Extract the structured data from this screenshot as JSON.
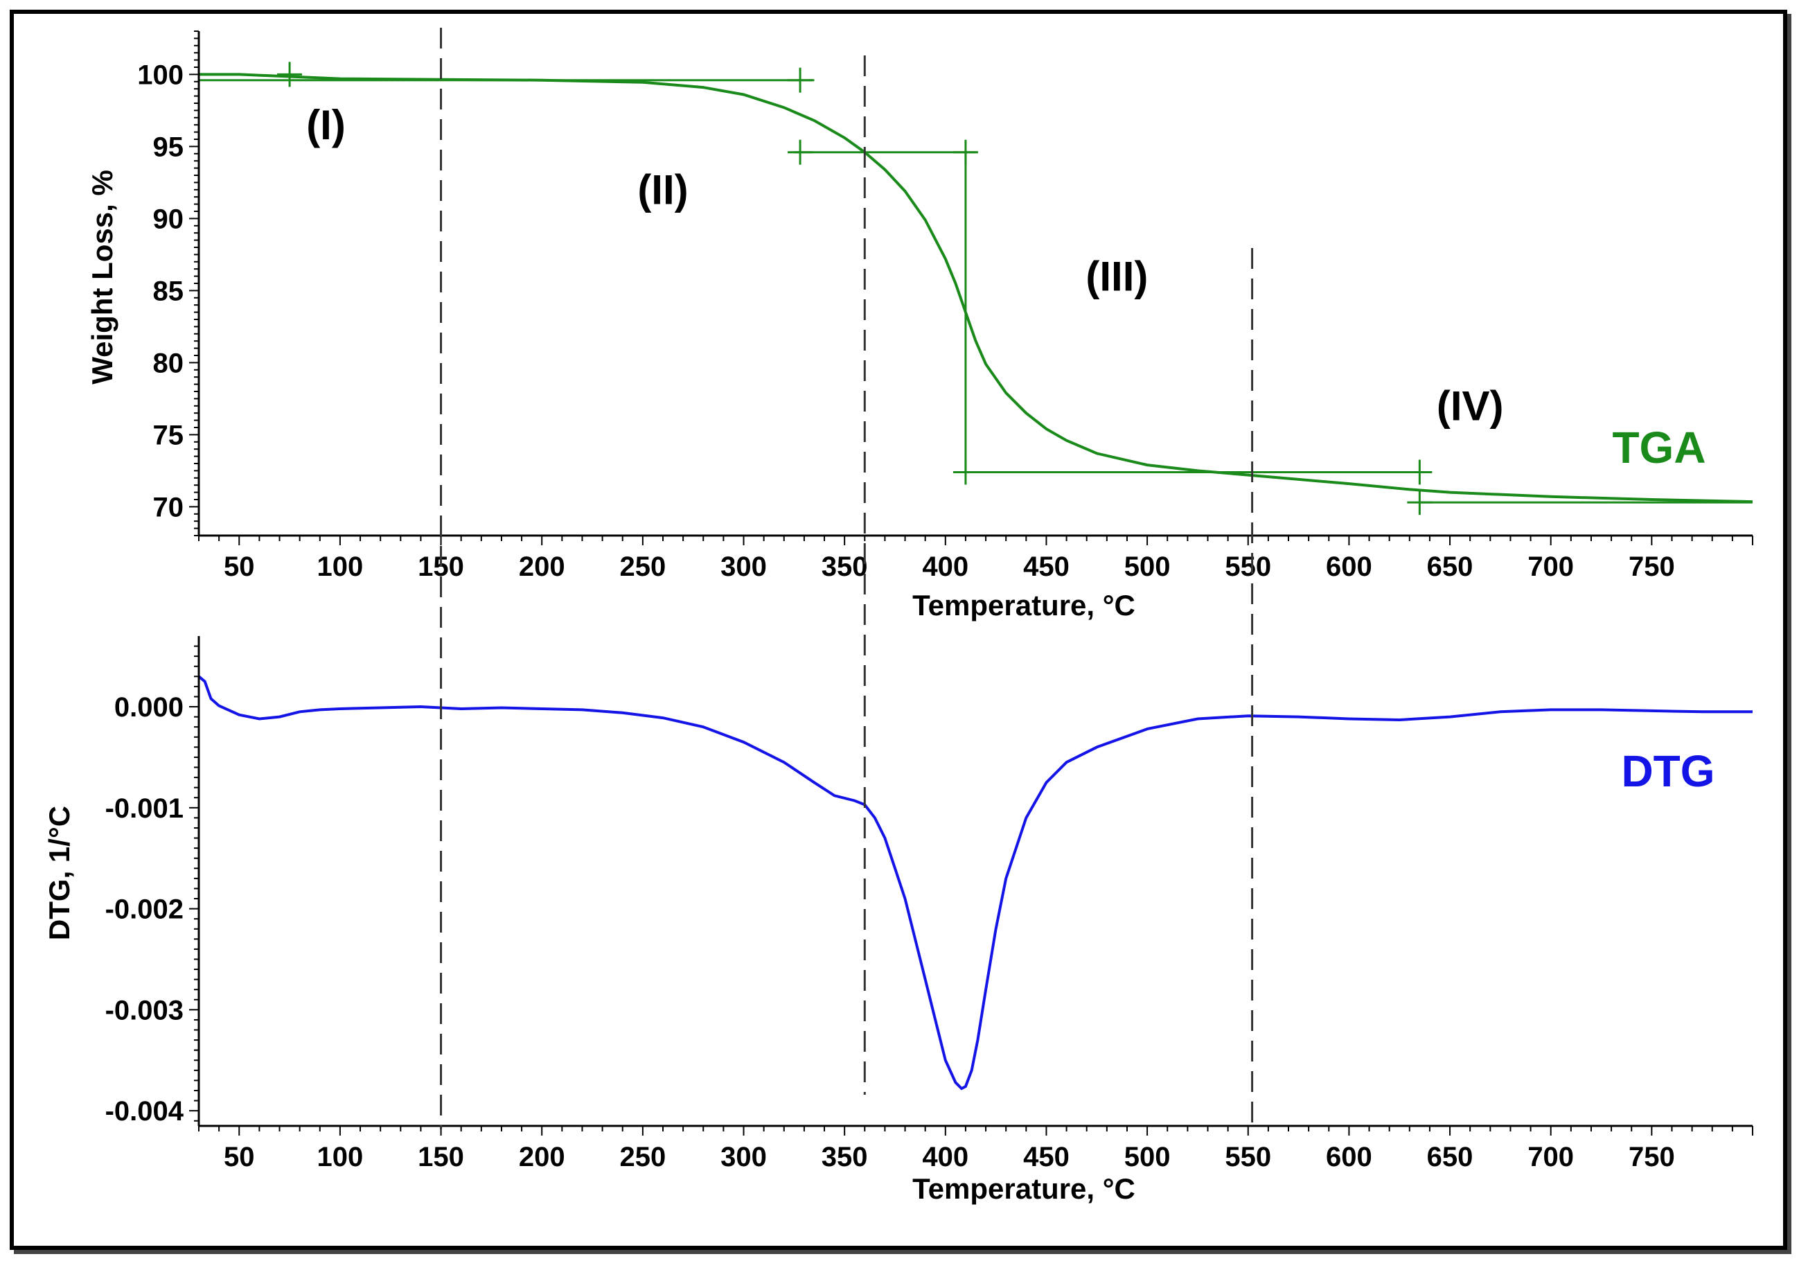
{
  "chart_data": [
    {
      "type": "line",
      "id": "tga",
      "series_name": "TGA",
      "color": "#1a8a1a",
      "xlabel": "Temperature, °C",
      "ylabel": "Weight Loss, %",
      "xlim": [
        30,
        800
      ],
      "ylim": [
        68,
        103
      ],
      "xticks": [
        50,
        100,
        150,
        200,
        250,
        300,
        350,
        400,
        450,
        500,
        550,
        600,
        650,
        700,
        750
      ],
      "yticks": [
        70,
        75,
        80,
        85,
        90,
        95,
        100
      ],
      "x": [
        30,
        50,
        75,
        100,
        150,
        200,
        250,
        280,
        300,
        320,
        335,
        350,
        360,
        370,
        380,
        390,
        400,
        405,
        410,
        415,
        420,
        430,
        440,
        450,
        460,
        475,
        500,
        525,
        550,
        575,
        600,
        630,
        650,
        700,
        750,
        800
      ],
      "y": [
        100.0,
        100.0,
        99.85,
        99.7,
        99.65,
        99.6,
        99.45,
        99.1,
        98.6,
        97.7,
        96.8,
        95.6,
        94.6,
        93.4,
        91.9,
        89.9,
        87.2,
        85.5,
        83.5,
        81.5,
        79.9,
        77.9,
        76.5,
        75.4,
        74.6,
        73.7,
        72.9,
        72.5,
        72.2,
        71.9,
        71.6,
        71.2,
        71.0,
        70.7,
        70.5,
        70.35
      ],
      "tangent_lines": [
        {
          "x": [
            30,
            335
          ],
          "y": [
            99.6,
            99.6
          ]
        },
        {
          "x": [
            325,
            415
          ],
          "y": [
            94.6,
            94.6
          ]
        },
        {
          "x": [
            410,
            410
          ],
          "y": [
            72.4,
            94.6
          ]
        },
        {
          "x": [
            410,
            640
          ],
          "y": [
            72.4,
            72.4
          ]
        },
        {
          "x": [
            635,
            800
          ],
          "y": [
            70.3,
            70.3
          ]
        }
      ],
      "markers": [
        {
          "x": 75,
          "y": 100.0
        },
        {
          "x": 328,
          "y": 99.6
        },
        {
          "x": 328,
          "y": 94.6
        },
        {
          "x": 410,
          "y": 94.6
        },
        {
          "x": 410,
          "y": 72.4
        },
        {
          "x": 635,
          "y": 72.4
        },
        {
          "x": 635,
          "y": 70.3
        }
      ],
      "region_labels": [
        {
          "text": "(I)",
          "x": 93,
          "y": 95.5
        },
        {
          "text": "(II)",
          "x": 260,
          "y": 91
        },
        {
          "text": "(III)",
          "x": 485,
          "y": 85
        },
        {
          "text": "(IV)",
          "x": 660,
          "y": 76
        }
      ]
    },
    {
      "type": "line",
      "id": "dtg",
      "series_name": "DTG",
      "color": "#1414e6",
      "xlabel": "Temperature, °C",
      "ylabel": "DTG, 1/°C",
      "xlim": [
        30,
        800
      ],
      "ylim": [
        -0.00415,
        0.0007
      ],
      "xticks": [
        50,
        100,
        150,
        200,
        250,
        300,
        350,
        400,
        450,
        500,
        550,
        600,
        650,
        700,
        750
      ],
      "yticks": [
        0.0,
        -0.001,
        -0.002,
        -0.003,
        -0.004
      ],
      "ytick_labels": [
        "0.000",
        "-0.001",
        "-0.002",
        "-0.003",
        "-0.004"
      ],
      "x": [
        30,
        33,
        36,
        40,
        50,
        60,
        70,
        80,
        90,
        100,
        120,
        140,
        160,
        180,
        200,
        220,
        240,
        260,
        280,
        300,
        320,
        335,
        345,
        355,
        360,
        365,
        370,
        375,
        380,
        385,
        390,
        395,
        400,
        405,
        408,
        410,
        413,
        416,
        420,
        425,
        430,
        440,
        450,
        460,
        475,
        500,
        525,
        550,
        575,
        600,
        625,
        650,
        675,
        700,
        725,
        750,
        775,
        800
      ],
      "y": [
        0.0003,
        0.00025,
        8e-05,
        1e-05,
        -8e-05,
        -0.00012,
        -0.0001,
        -5e-05,
        -3e-05,
        -2e-05,
        -1e-05,
        0.0,
        -2e-05,
        -1e-05,
        -2e-05,
        -3e-05,
        -6e-05,
        -0.00011,
        -0.0002,
        -0.00035,
        -0.00055,
        -0.00075,
        -0.00088,
        -0.00093,
        -0.00097,
        -0.0011,
        -0.0013,
        -0.0016,
        -0.0019,
        -0.0023,
        -0.0027,
        -0.0031,
        -0.0035,
        -0.00372,
        -0.00378,
        -0.00376,
        -0.0036,
        -0.0033,
        -0.0028,
        -0.0022,
        -0.0017,
        -0.0011,
        -0.00075,
        -0.00055,
        -0.0004,
        -0.00022,
        -0.00012,
        -9e-05,
        -0.0001,
        -0.00012,
        -0.00013,
        -0.0001,
        -5e-05,
        -3e-05,
        -3e-05,
        -4e-05,
        -5e-05,
        -5e-05
      ]
    }
  ],
  "divider_temperatures": [
    150,
    360,
    552
  ]
}
